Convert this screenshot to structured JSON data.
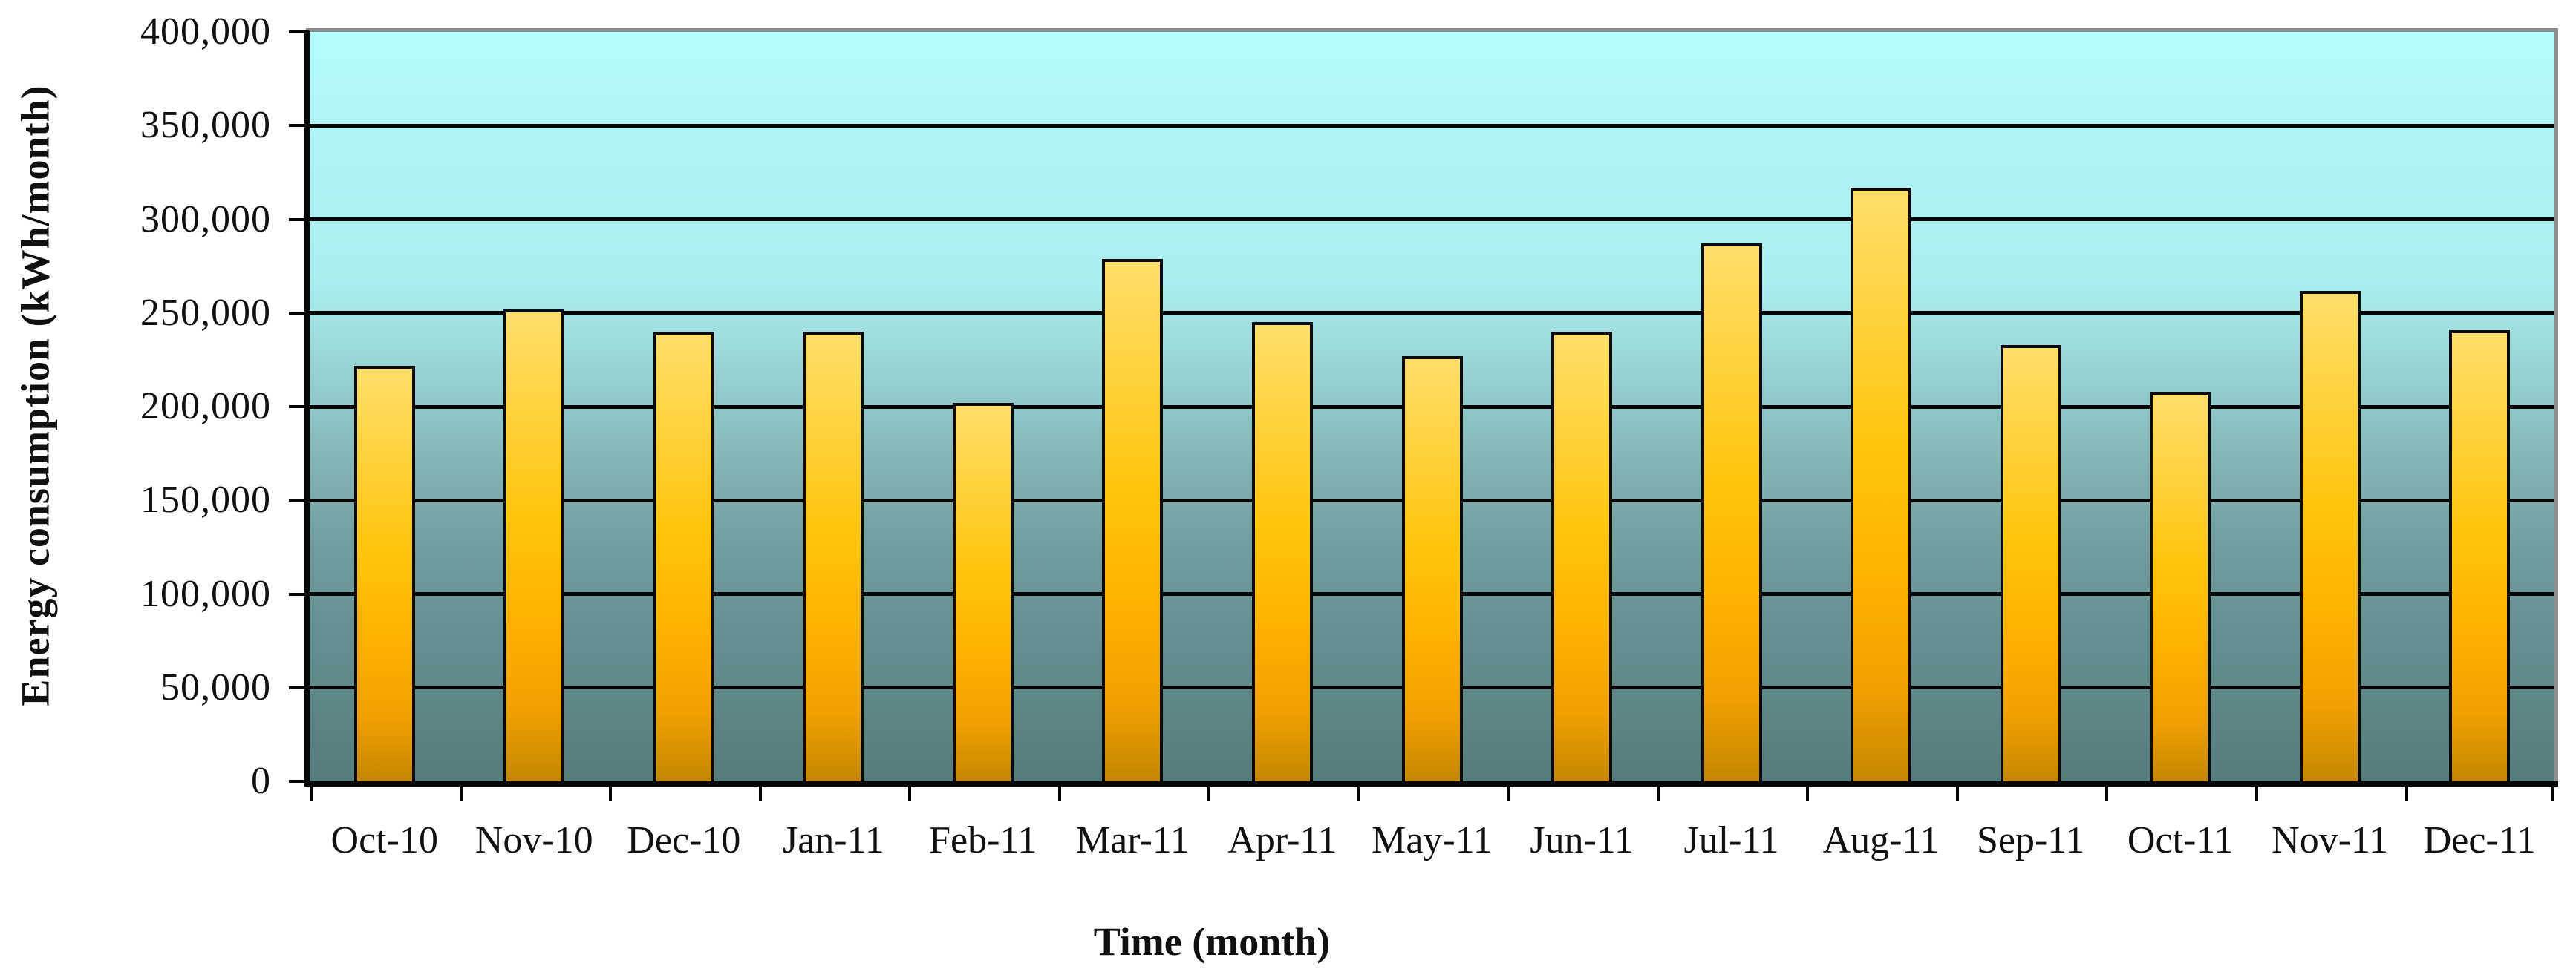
{
  "page": {
    "background": "#ffffff"
  },
  "chart_data": {
    "type": "bar",
    "title": "",
    "xlabel": "Time (month)",
    "ylabel": "Energy consumption (kWh/month)",
    "categories": [
      "Oct-10",
      "Nov-10",
      "Dec-10",
      "Jan-11",
      "Feb-11",
      "Mar-11",
      "Apr-11",
      "May-11",
      "Jun-11",
      "Jul-11",
      "Aug-11",
      "Sep-11",
      "Oct-11",
      "Nov-11",
      "Dec-11"
    ],
    "values": [
      222000,
      252000,
      240000,
      240000,
      202000,
      279000,
      245000,
      227000,
      240000,
      287000,
      317000,
      233000,
      208000,
      262000,
      241000
    ],
    "ylim": [
      0,
      400000
    ],
    "ytick_step": 50000,
    "ytick_labels": [
      "400,000",
      "350,000",
      "300,000",
      "250,000",
      "200,000",
      "150,000",
      "100,000",
      "50,000",
      "0"
    ],
    "grid": "horizontal-only",
    "legend": "none",
    "colors": {
      "bar_gradient_top": "#ffdf6b",
      "bar_gradient_mid": "#ffc40a",
      "bar_gradient_bottom": "#c48700",
      "bar_border": "#0a0a0a",
      "plot_bg_top": "#b4fbfb",
      "plot_bg_bottom": "#567c7d",
      "axis": "#050505",
      "outer_border": "#8c8c8c",
      "text": "#101010"
    }
  }
}
